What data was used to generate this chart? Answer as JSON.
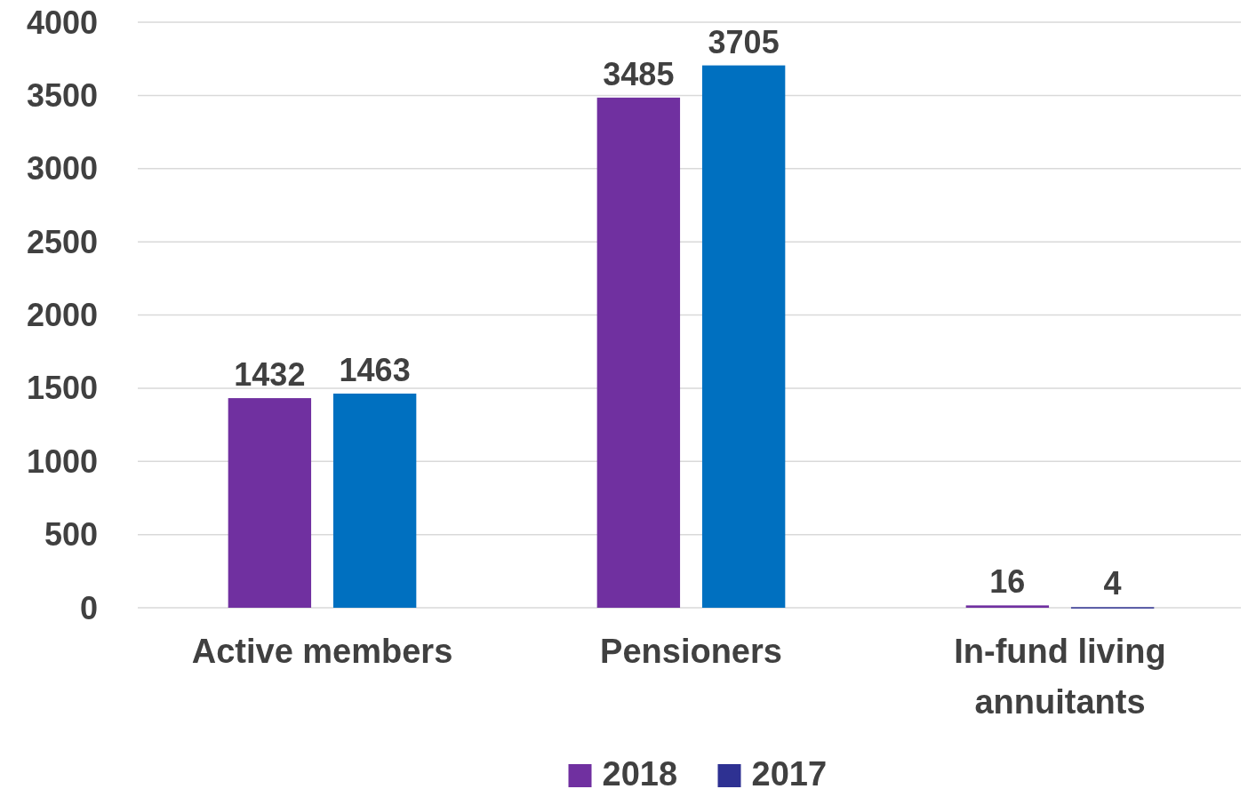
{
  "chart_data": {
    "type": "bar",
    "categories": [
      "Active members",
      "Pensioners",
      "In-fund living annuitants"
    ],
    "series": [
      {
        "name": "2018",
        "color": "#7030a0",
        "values": [
          1432,
          3485,
          16
        ]
      },
      {
        "name": "2017",
        "color": "#2e3192",
        "colors": [
          "#0070c0",
          "#0070c0",
          "#2e3192"
        ],
        "values": [
          1463,
          3705,
          4
        ]
      }
    ],
    "ylim": [
      0,
      4000
    ],
    "yticks": [
      0,
      500,
      1000,
      1500,
      2000,
      2500,
      3000,
      3500,
      4000
    ],
    "grid": "y",
    "data_labels": true,
    "legend": "bottom"
  }
}
